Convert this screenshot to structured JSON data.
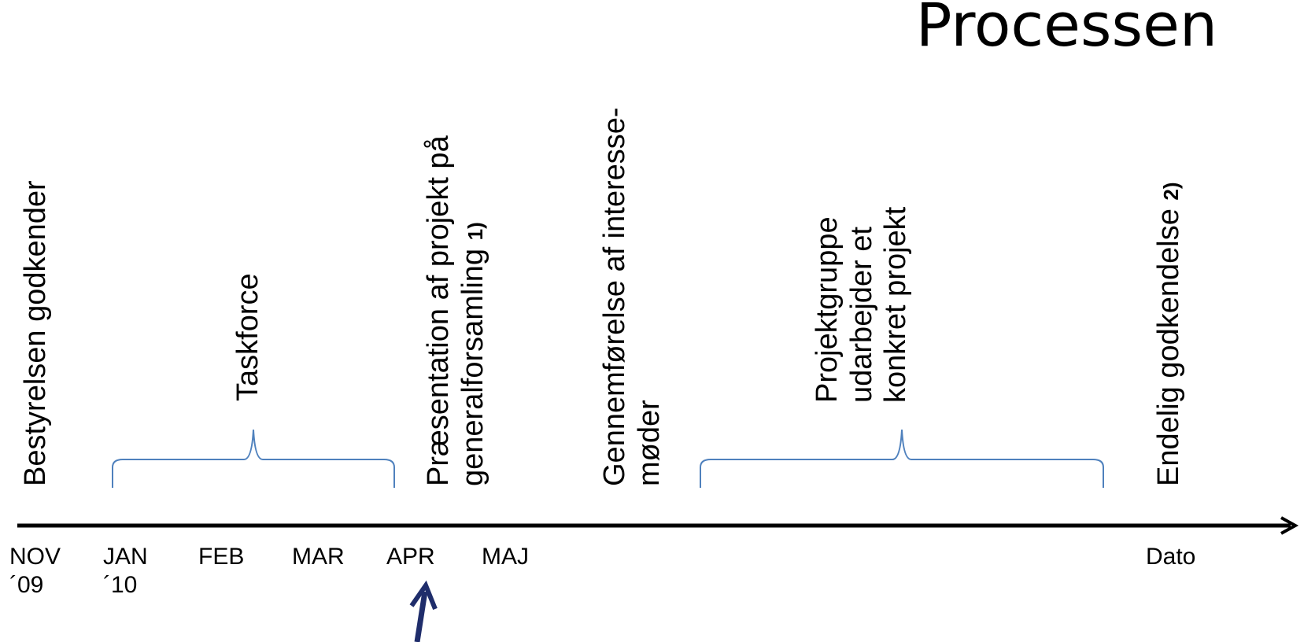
{
  "title": "Processen",
  "labels": {
    "bestyrelsen": "Bestyrelsen godkender",
    "taskforce": "Taskforce",
    "praesentation_line1": "Præsentation af projekt på",
    "praesentation_line2": "generalforsamling",
    "praesentation_note": "1)",
    "gennemforelse_line1": "Gennemførelse af interesse-",
    "gennemforelse_line2": "møder",
    "projektgruppe_line1": "Projektgruppe",
    "projektgruppe_line2": "udarbejder et",
    "projektgruppe_line3": "konkret projekt",
    "endelig": "Endelig godkendelse",
    "endelig_note": "2)"
  },
  "months": [
    {
      "name": "NOV",
      "year": "´09"
    },
    {
      "name": "JAN",
      "year": "´10"
    },
    {
      "name": "FEB",
      "year": ""
    },
    {
      "name": "MAR",
      "year": ""
    },
    {
      "name": "APR",
      "year": ""
    },
    {
      "name": "MAJ",
      "year": ""
    },
    {
      "name": "Dato",
      "year": ""
    }
  ],
  "colors": {
    "axis": "#000000",
    "brace": "#4f81bd",
    "marker_arrow": "#1f2d6b"
  }
}
